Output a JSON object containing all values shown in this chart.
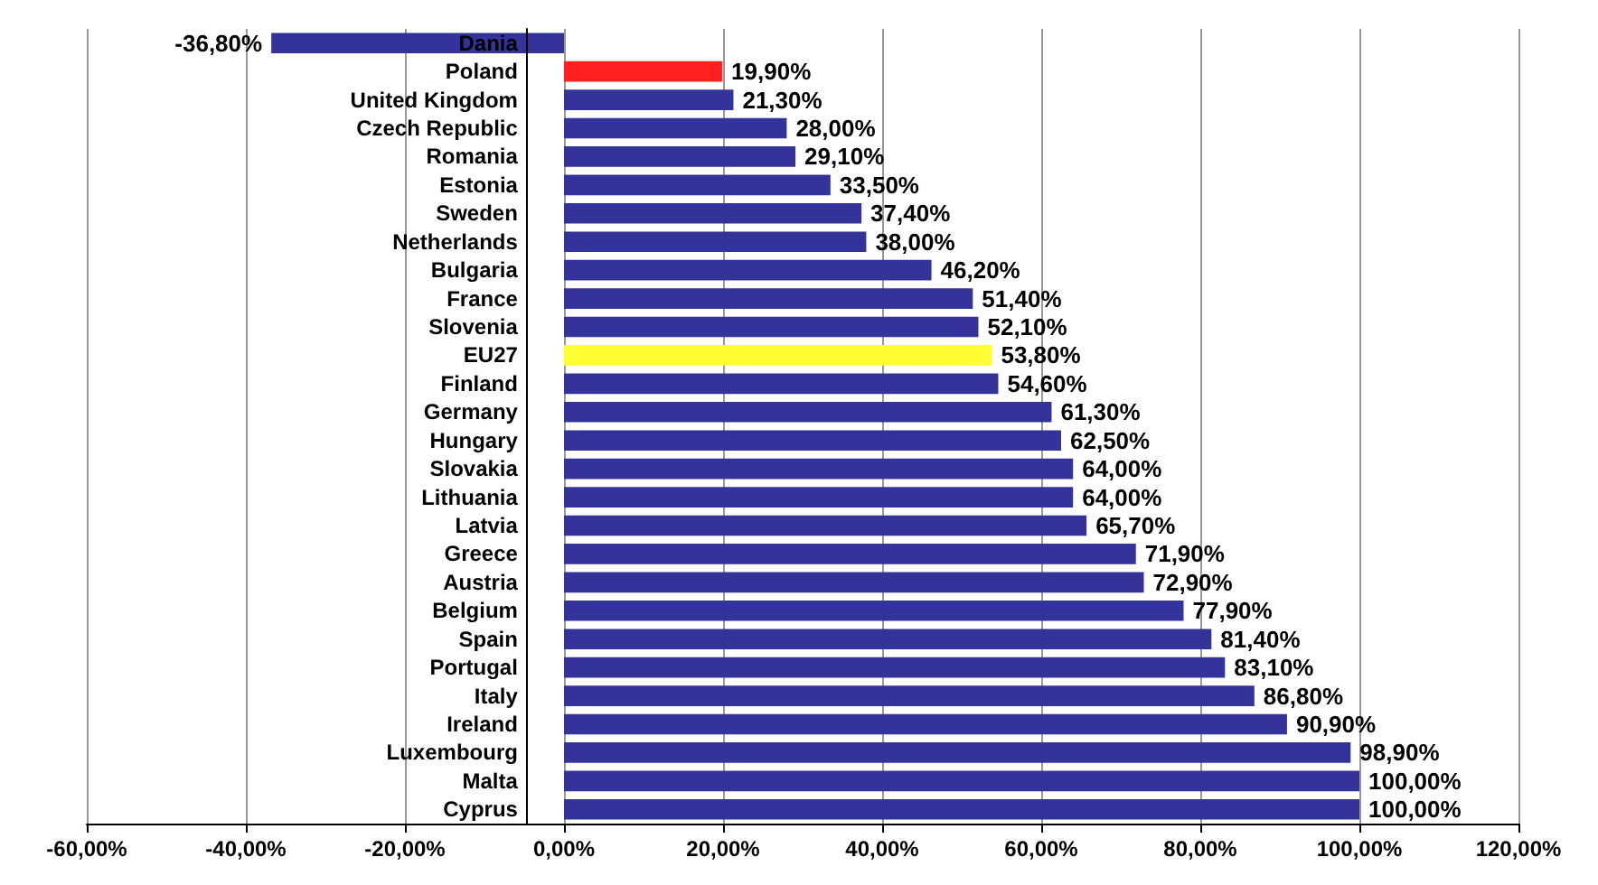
{
  "chart_data": {
    "type": "bar",
    "orientation": "horizontal",
    "categories": [
      "Dania",
      "Poland",
      "United Kingdom",
      "Czech Republic",
      "Romania",
      "Estonia",
      "Sweden",
      "Netherlands",
      "Bulgaria",
      "France",
      "Slovenia",
      "EU27",
      "Finland",
      "Germany",
      "Hungary",
      "Slovakia",
      "Lithuania",
      "Latvia",
      "Greece",
      "Austria",
      "Belgium",
      "Spain",
      "Portugal",
      "Italy",
      "Ireland",
      "Luxembourg",
      "Malta",
      "Cyprus"
    ],
    "values": [
      -36.8,
      19.9,
      21.3,
      28.0,
      29.1,
      33.5,
      37.4,
      38.0,
      46.2,
      51.4,
      52.1,
      53.8,
      54.6,
      61.3,
      62.5,
      64.0,
      64.0,
      65.7,
      71.9,
      72.9,
      77.9,
      81.4,
      83.1,
      86.8,
      90.9,
      98.9,
      100.0,
      100.0
    ],
    "value_labels": [
      "-36,80%",
      "19,90%",
      "21,30%",
      "28,00%",
      "29,10%",
      "33,50%",
      "37,40%",
      "38,00%",
      "46,20%",
      "51,40%",
      "52,10%",
      "53,80%",
      "54,60%",
      "61,30%",
      "62,50%",
      "64,00%",
      "64,00%",
      "65,70%",
      "71,90%",
      "72,90%",
      "77,90%",
      "81,40%",
      "83,10%",
      "86,80%",
      "90,90%",
      "98,90%",
      "100,00%",
      "100,00%"
    ],
    "colors": [
      "#333399",
      "#ff2020",
      "#333399",
      "#333399",
      "#333399",
      "#333399",
      "#333399",
      "#333399",
      "#333399",
      "#333399",
      "#333399",
      "#ffff33",
      "#333399",
      "#333399",
      "#333399",
      "#333399",
      "#333399",
      "#333399",
      "#333399",
      "#333399",
      "#333399",
      "#333399",
      "#333399",
      "#333399",
      "#333399",
      "#333399",
      "#333399",
      "#333399"
    ],
    "xlim": [
      -60,
      120
    ],
    "xticks": [
      {
        "value": -60,
        "label": "-60,00%"
      },
      {
        "value": -40,
        "label": "-40,00%"
      },
      {
        "value": -20,
        "label": "-20,00%"
      },
      {
        "value": 0,
        "label": "0,00%"
      },
      {
        "value": 20,
        "label": "20,00%"
      },
      {
        "value": 40,
        "label": "40,00%"
      },
      {
        "value": 60,
        "label": "60,00%"
      },
      {
        "value": 80,
        "label": "80,00%"
      },
      {
        "value": 100,
        "label": "100,00%"
      },
      {
        "value": 120,
        "label": "120,00%"
      }
    ],
    "grid": "x"
  }
}
